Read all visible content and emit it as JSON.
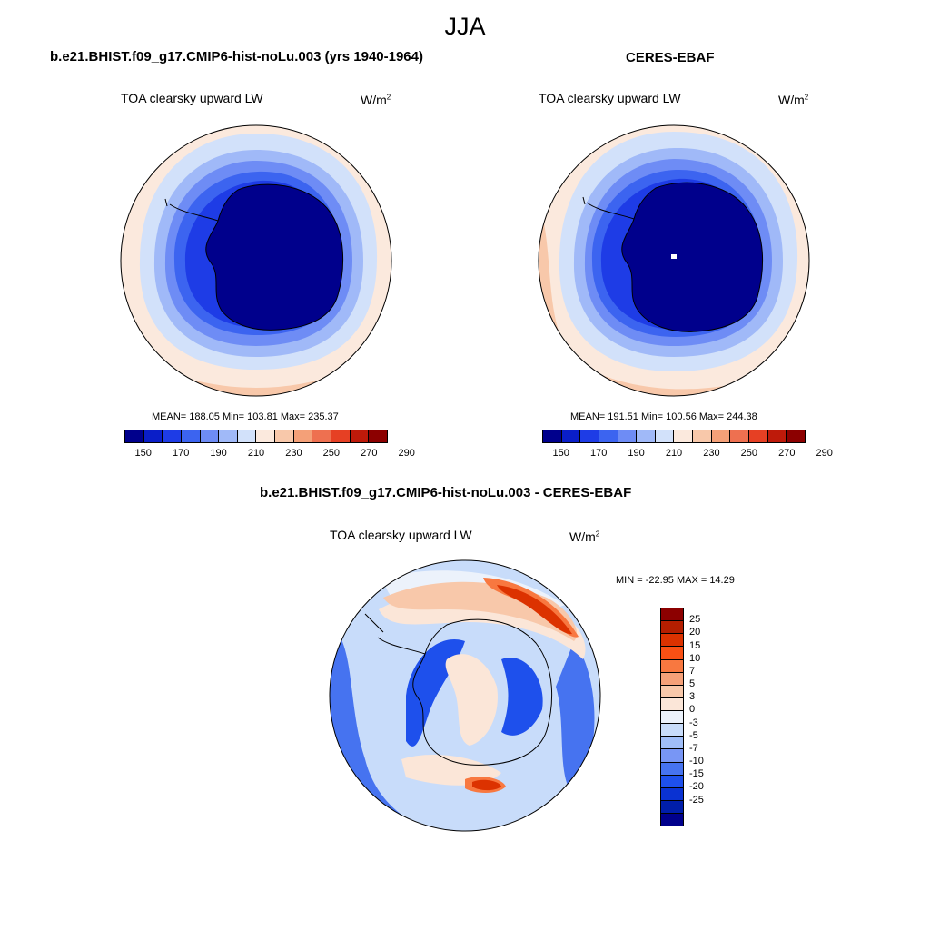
{
  "season": "JJA",
  "panels": {
    "model": {
      "title": "b.e21.BHIST.f09_g17.CMIP6-hist-noLu.003 (yrs 1940-1964)",
      "variable": "TOA clearsky upward LW",
      "units": "W/m",
      "units_sup": "2",
      "stats": "MEAN= 188.05  Min= 103.81  Max= 235.37"
    },
    "obs": {
      "title": "CERES-EBAF",
      "variable": "TOA clearsky upward LW",
      "units": "W/m",
      "units_sup": "2",
      "stats": "MEAN= 191.51  Min= 100.56  Max= 244.38"
    },
    "diff": {
      "title": "b.e21.BHIST.f09_g17.CMIP6-hist-noLu.003 - CERES-EBAF",
      "variable": "TOA clearsky upward LW",
      "units": "W/m",
      "units_sup": "2",
      "stats": "MIN = -22.95 MAX =  14.29"
    }
  },
  "colorbars": {
    "absolute": {
      "colors": [
        "#00008c",
        "#0a1ec8",
        "#1e3ce6",
        "#3c64f0",
        "#6e8cf5",
        "#a0b9f8",
        "#d2e1fa",
        "#fbe9dd",
        "#f8c8aa",
        "#f4a078",
        "#ee7050",
        "#e64024",
        "#be1a0a",
        "#8c0000"
      ],
      "tick_labels": [
        "150",
        "170",
        "190",
        "210",
        "230",
        "250",
        "270",
        "290"
      ]
    },
    "difference": {
      "colors": [
        "#8c0000",
        "#b41e00",
        "#dc3200",
        "#fa5014",
        "#f87840",
        "#f5a078",
        "#f8c8aa",
        "#fbe6d8",
        "#ecf2fb",
        "#c8dcfa",
        "#a0bef8",
        "#7896f5",
        "#4673f0",
        "#1e50ec",
        "#0a32d2",
        "#001eaa",
        "#00008c"
      ],
      "tick_labels": [
        "25",
        "20",
        "15",
        "10",
        "7",
        "5",
        "3",
        "0",
        "-3",
        "-5",
        "-7",
        "-10",
        "-15",
        "-20",
        "-25"
      ]
    }
  },
  "map_colors": {
    "outer": "#fbe9dd",
    "ring_warm": "#f8c8aa",
    "ring_pale": "#d2e1fa",
    "ring_light": "#a0b9f8",
    "ring_mid": "#6e8cf5",
    "ring_blue": "#3c64f0",
    "ring_deep": "#1e3ce6",
    "continent": "#00008c",
    "diff_bg": "#c8dcfa",
    "diff_blue": "#4673f0",
    "diff_deep": "#1e50ec",
    "diff_white": "#ecf2fb",
    "diff_peach": "#fbe6d8",
    "diff_salmon": "#f8c8aa",
    "diff_orange": "#f87840",
    "diff_red": "#dc3200"
  }
}
